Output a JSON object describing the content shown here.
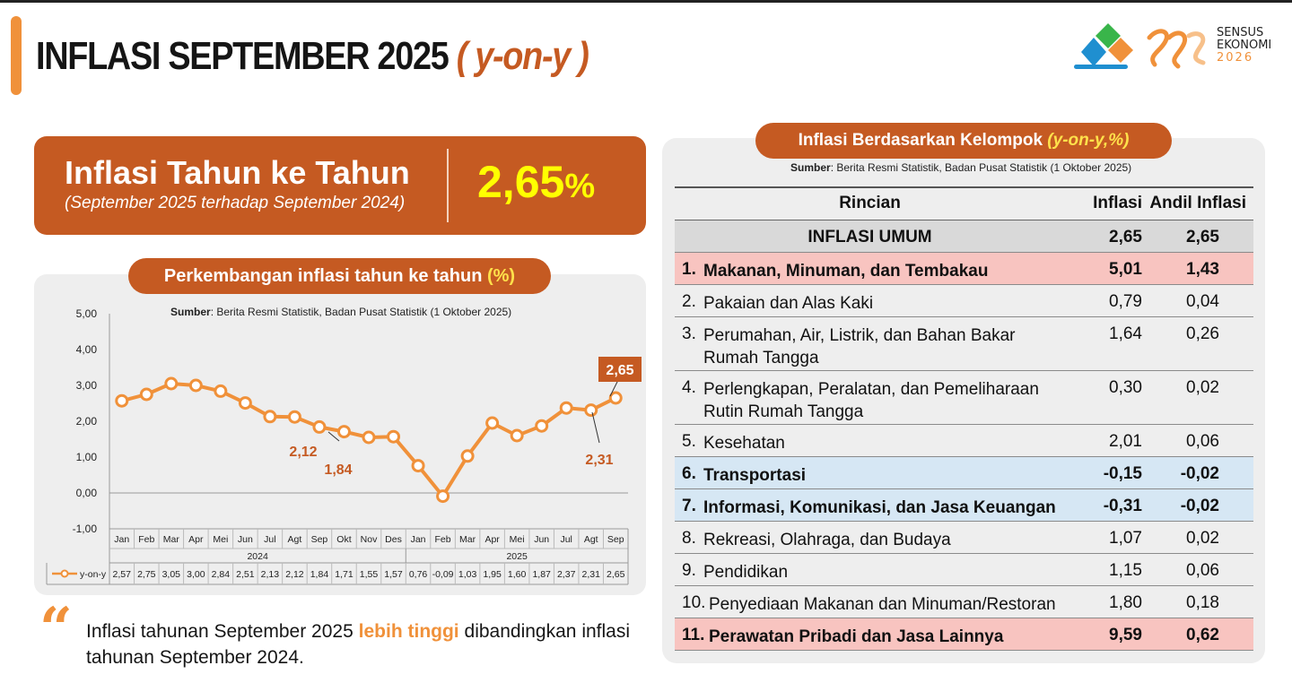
{
  "header": {
    "title_main": "INFLASI SEPTEMBER 2025",
    "title_yoy": "( y-on-y )"
  },
  "logo": {
    "line1": "SENSUS",
    "line2": "EKONOMI",
    "line3": "2026",
    "colors": {
      "blue": "#1f8fd0",
      "green": "#39b54a",
      "orange": "#f0913a"
    }
  },
  "headline": {
    "title": "Inflasi Tahun ke Tahun",
    "subtitle": "(September 2025 terhadap September 2024)",
    "value": "2,65",
    "unit": "%"
  },
  "chart_panel": {
    "pill_text": "Perkembangan inflasi tahun ke tahun ",
    "pill_unit": "(%)",
    "source_label": "Sumber",
    "source_text": ": Berita Resmi Statistik, Badan Pusat Statistik (1 Oktober 2025)"
  },
  "chart_data": {
    "type": "line",
    "categories": [
      "Jan",
      "Feb",
      "Mar",
      "Apr",
      "Mei",
      "Jun",
      "Jul",
      "Agt",
      "Sep",
      "Okt",
      "Nov",
      "Des",
      "Jan",
      "Feb",
      "Mar",
      "Apr",
      "Mei",
      "Jun",
      "Jul",
      "Agt",
      "Sep"
    ],
    "year_groups": [
      {
        "label": "2024",
        "start": 0,
        "end": 11
      },
      {
        "label": "2025",
        "start": 12,
        "end": 20
      }
    ],
    "series": [
      {
        "name": "y-on-y",
        "values": [
          2.57,
          2.75,
          3.05,
          3.0,
          2.84,
          2.51,
          2.13,
          2.12,
          1.84,
          1.71,
          1.55,
          1.57,
          0.76,
          -0.09,
          1.03,
          1.95,
          1.6,
          1.87,
          2.37,
          2.31,
          2.65
        ]
      }
    ],
    "table_values": [
      "2,57",
      "2,75",
      "3,05",
      "3,00",
      "2,84",
      "2,51",
      "2,13",
      "2,12",
      "1,84",
      "1,71",
      "1,55",
      "1,57",
      "0,76",
      "-0,09",
      "1,03",
      "1,95",
      "1,60",
      "1,87",
      "2,37",
      "2,31",
      "2,65"
    ],
    "yticks": [
      "5,00",
      "4,00",
      "3,00",
      "2,00",
      "1,00",
      "0,00",
      "-1,00"
    ],
    "ylim": [
      -1,
      5
    ],
    "annotations": [
      {
        "index": 7,
        "label": "2,12"
      },
      {
        "index": 8,
        "label": "1,84"
      },
      {
        "index": 19,
        "label": "2,31"
      },
      {
        "index": 20,
        "label": "2,65",
        "boxed": true
      }
    ],
    "line_color": "#f0913a",
    "label_color": "#c55a22"
  },
  "quote": {
    "text_before": "Inflasi tahunan September 2025 ",
    "highlight": "lebih tinggi",
    "text_after": " dibandingkan inflasi tahunan September 2024."
  },
  "table_panel": {
    "pill_text": "Inflasi Berdasarkan Kelompok ",
    "pill_unit": "(y-on-y,%)",
    "source_label": "Sumber",
    "source_text": ": Berita Resmi Statistik, Badan Pusat Statistik (1 Oktober 2025)",
    "headers": {
      "rincian": "Rincian",
      "inflasi": "Inflasi",
      "andil": "Andil Inflasi"
    },
    "umum": {
      "label": "INFLASI UMUM",
      "inflasi": "2,65",
      "andil": "2,65"
    },
    "rows": [
      {
        "num": "1.",
        "label": "Makanan, Minuman, dan Tembakau",
        "inflasi": "5,01",
        "andil": "1,43",
        "hl": "red"
      },
      {
        "num": "2.",
        "label": "Pakaian dan Alas Kaki",
        "inflasi": "0,79",
        "andil": "0,04",
        "hl": ""
      },
      {
        "num": "3.",
        "label": "Perumahan, Air, Listrik, dan Bahan Bakar Rumah Tangga",
        "inflasi": "1,64",
        "andil": "0,26",
        "hl": ""
      },
      {
        "num": "4.",
        "label": "Perlengkapan, Peralatan, dan Pemeliharaan Rutin Rumah Tangga",
        "inflasi": "0,30",
        "andil": "0,02",
        "hl": ""
      },
      {
        "num": "5.",
        "label": "Kesehatan",
        "inflasi": "2,01",
        "andil": "0,06",
        "hl": ""
      },
      {
        "num": "6.",
        "label": "Transportasi",
        "inflasi": "-0,15",
        "andil": "-0,02",
        "hl": "blue"
      },
      {
        "num": "7.",
        "label": "Informasi, Komunikasi, dan Jasa Keuangan",
        "inflasi": "-0,31",
        "andil": "-0,02",
        "hl": "blue"
      },
      {
        "num": "8.",
        "label": "Rekreasi, Olahraga, dan Budaya",
        "inflasi": "1,07",
        "andil": "0,02",
        "hl": ""
      },
      {
        "num": "9.",
        "label": "Pendidikan",
        "inflasi": "1,15",
        "andil": "0,06",
        "hl": ""
      },
      {
        "num": "10.",
        "label": "Penyediaan Makanan dan Minuman/Restoran",
        "inflasi": "1,80",
        "andil": "0,18",
        "hl": ""
      },
      {
        "num": "11.",
        "label": "Perawatan Pribadi dan Jasa Lainnya",
        "inflasi": "9,59",
        "andil": "0,62",
        "hl": "red"
      }
    ]
  }
}
